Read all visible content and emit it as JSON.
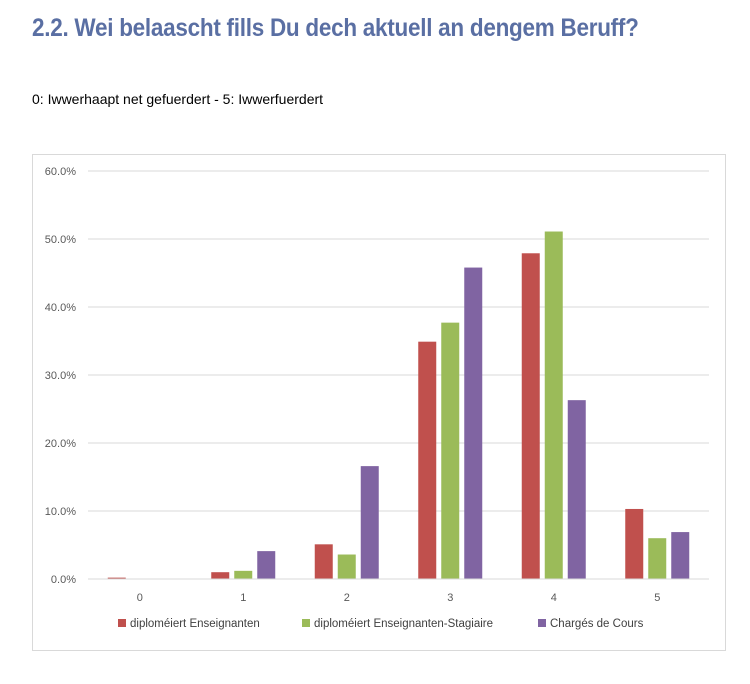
{
  "header": {
    "title": "2.2. Wei belaascht fills Du dech aktuell an dengem Beruff?",
    "subtitle": "0: Iwwerhaapt net gefuerdert - 5: Iwwerfuerdert"
  },
  "chart_data": {
    "type": "bar",
    "title": "",
    "xlabel": "",
    "ylabel": "",
    "categories": [
      "0",
      "1",
      "2",
      "3",
      "4",
      "5"
    ],
    "ylim": [
      0,
      60
    ],
    "yticks": [
      0,
      10,
      20,
      30,
      40,
      50,
      60
    ],
    "ytick_labels": [
      "0.0%",
      "10.0%",
      "20.0%",
      "30.0%",
      "40.0%",
      "50.0%",
      "60.0%"
    ],
    "grid": true,
    "legend_position": "bottom",
    "series": [
      {
        "name": "diploméiert Enseignanten",
        "color": "#c0504d",
        "values": [
          0.2,
          1.0,
          5.1,
          34.9,
          47.9,
          10.3
        ]
      },
      {
        "name": "diploméiert Enseignanten-Stagiaire",
        "color": "#9bbb59",
        "values": [
          0.0,
          1.2,
          3.6,
          37.7,
          51.1,
          6.0
        ]
      },
      {
        "name": "Chargés de Cours",
        "color": "#8064a2",
        "values": [
          0.0,
          4.1,
          16.6,
          45.8,
          26.3,
          6.9
        ]
      }
    ]
  }
}
